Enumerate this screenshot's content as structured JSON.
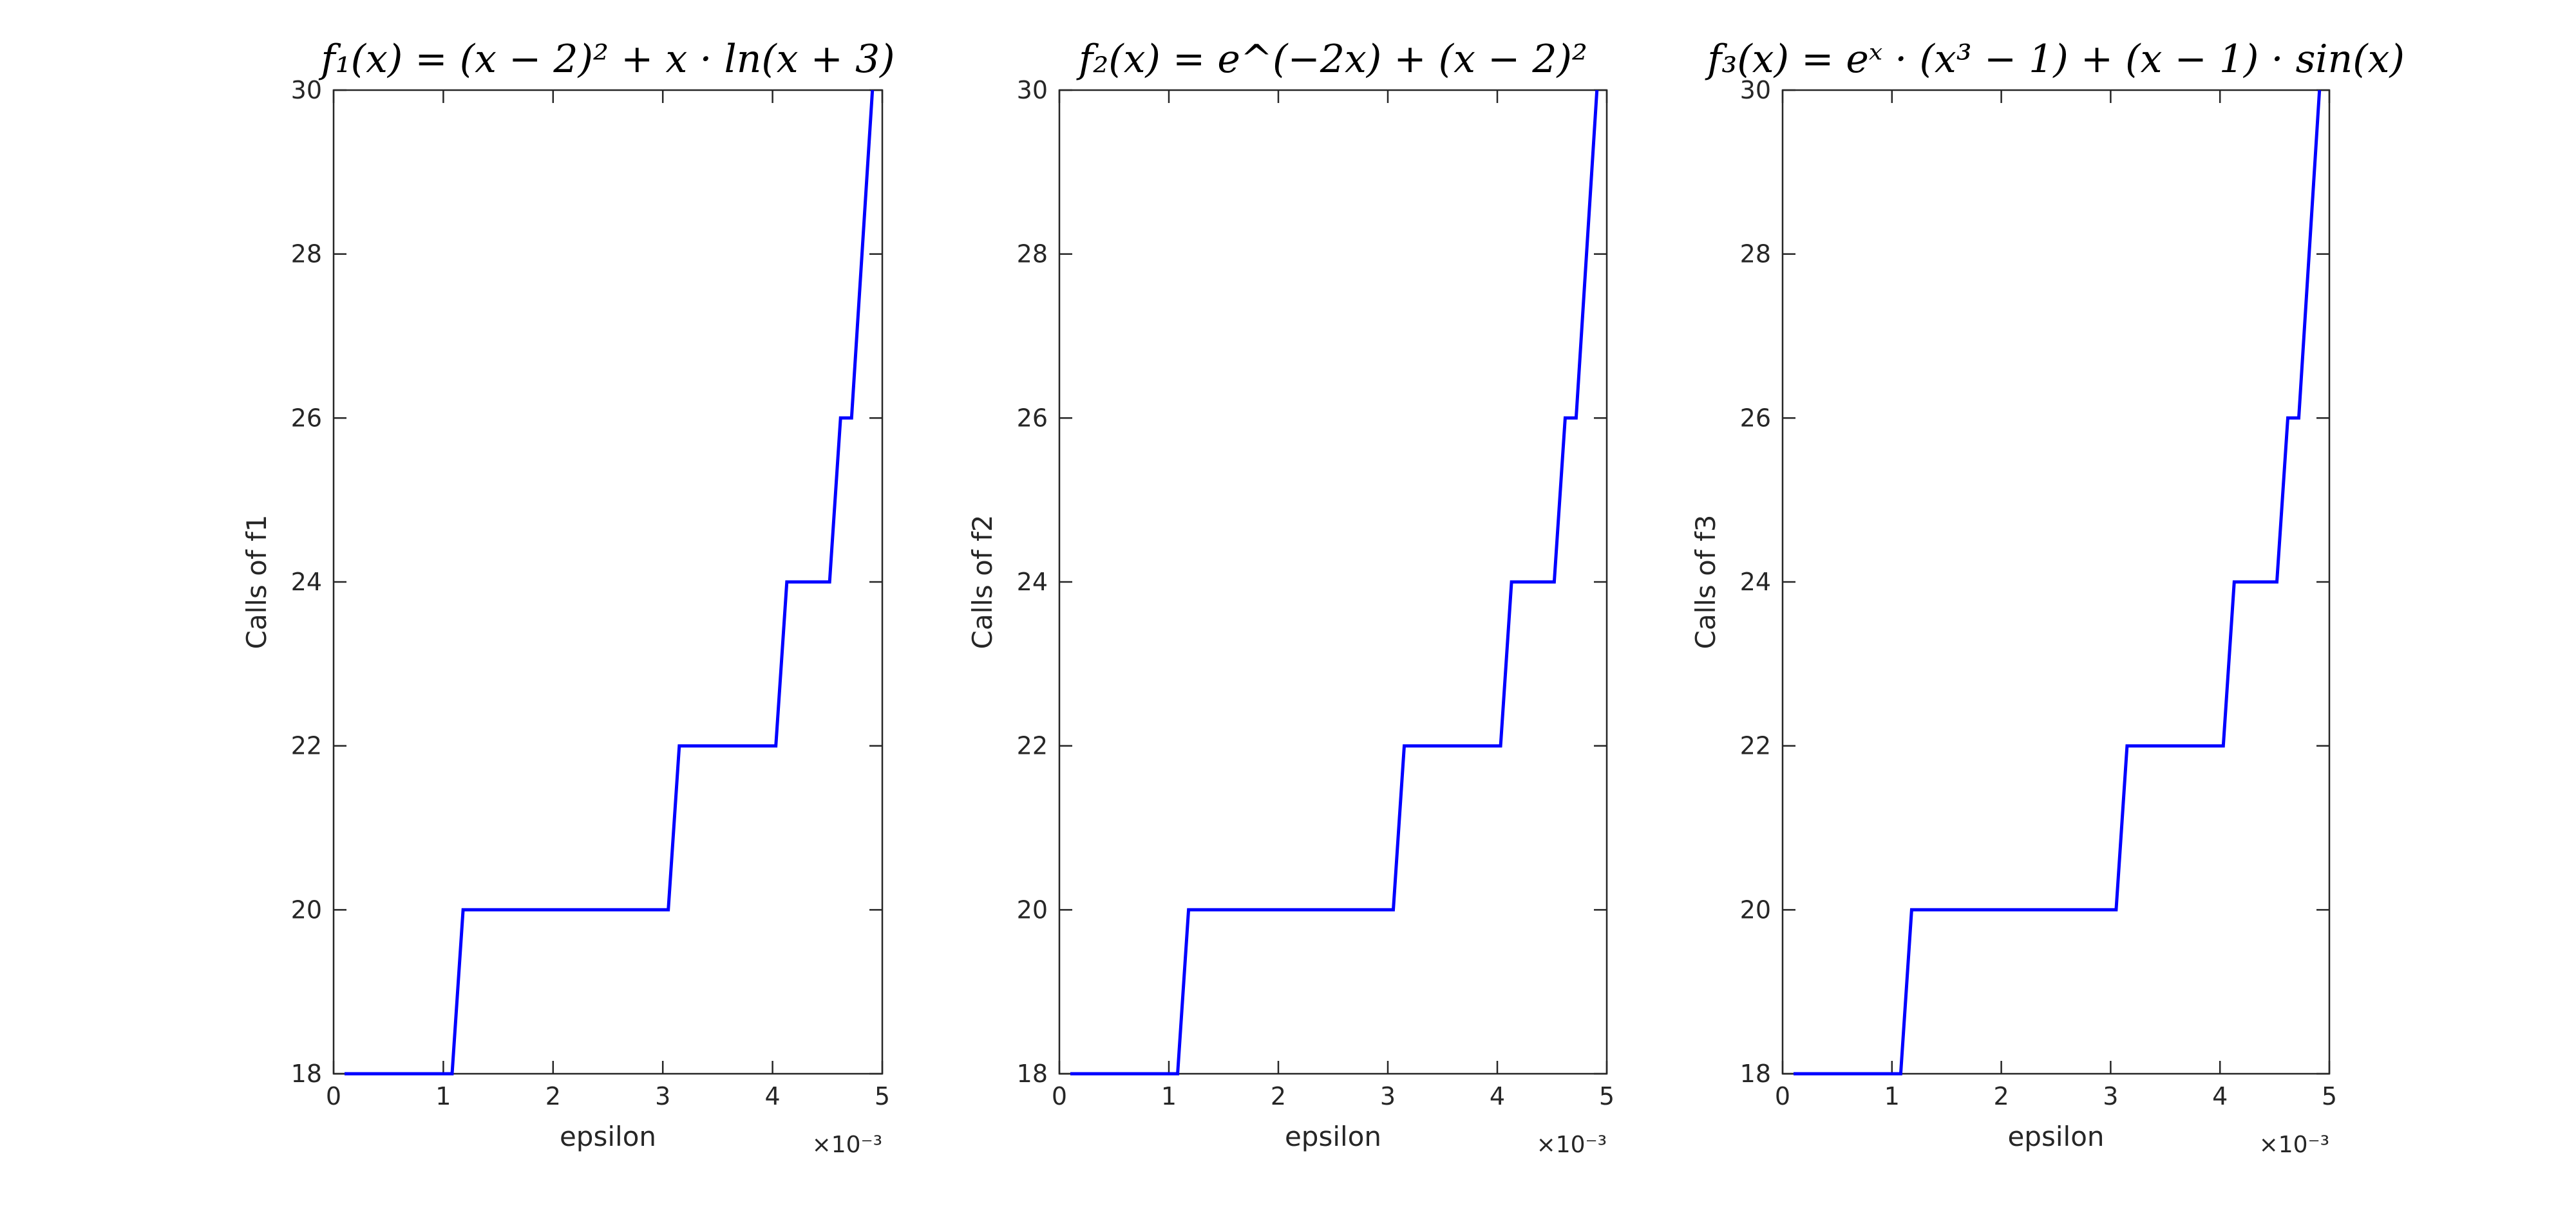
{
  "chart_data": [
    {
      "type": "line",
      "title": "f₁(x) = (x − 2)² + x · ln(x + 3)",
      "xlabel": "epsilon",
      "ylabel": "Calls of f1",
      "x_multiplier": "×10⁻³",
      "xlim": [
        0,
        5
      ],
      "ylim": [
        18,
        30
      ],
      "xticks": [
        "0",
        "1",
        "2",
        "3",
        "4",
        "5"
      ],
      "yticks": [
        "18",
        "20",
        "22",
        "24",
        "26",
        "28",
        "30"
      ],
      "grid": false,
      "series": [
        {
          "color": "#0000ff",
          "x": [
            0.1,
            1.08,
            1.18,
            3.05,
            3.15,
            4.03,
            4.13,
            4.52,
            4.62,
            4.72,
            4.91
          ],
          "y": [
            18,
            18,
            20,
            20,
            22,
            22,
            24,
            24,
            26,
            26,
            30
          ]
        }
      ]
    },
    {
      "type": "line",
      "title": "f₂(x) = e^(−2x) + (x − 2)²",
      "xlabel": "epsilon",
      "ylabel": "Calls of f2",
      "x_multiplier": "×10⁻³",
      "xlim": [
        0,
        5
      ],
      "ylim": [
        18,
        30
      ],
      "xticks": [
        "0",
        "1",
        "2",
        "3",
        "4",
        "5"
      ],
      "yticks": [
        "18",
        "20",
        "22",
        "24",
        "26",
        "28",
        "30"
      ],
      "grid": false,
      "series": [
        {
          "color": "#0000ff",
          "x": [
            0.1,
            1.08,
            1.18,
            3.05,
            3.15,
            4.03,
            4.13,
            4.52,
            4.62,
            4.72,
            4.91
          ],
          "y": [
            18,
            18,
            20,
            20,
            22,
            22,
            24,
            24,
            26,
            26,
            30
          ]
        }
      ]
    },
    {
      "type": "line",
      "title": "f₃(x) = eˣ · (x³ − 1) + (x − 1) · sin(x)",
      "xlabel": "epsilon",
      "ylabel": "Calls of f3",
      "x_multiplier": "×10⁻³",
      "xlim": [
        0,
        5
      ],
      "ylim": [
        18,
        30
      ],
      "xticks": [
        "0",
        "1",
        "2",
        "3",
        "4",
        "5"
      ],
      "yticks": [
        "18",
        "20",
        "22",
        "24",
        "26",
        "28",
        "30"
      ],
      "grid": false,
      "series": [
        {
          "color": "#0000ff",
          "x": [
            0.1,
            1.08,
            1.18,
            3.05,
            3.15,
            4.03,
            4.13,
            4.52,
            4.62,
            4.72,
            4.91
          ],
          "y": [
            18,
            18,
            20,
            20,
            22,
            22,
            24,
            24,
            26,
            26,
            30
          ]
        }
      ]
    }
  ]
}
